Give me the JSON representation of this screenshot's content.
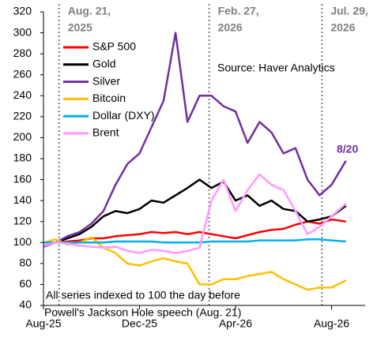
{
  "chart_data": {
    "type": "line",
    "x": [
      0,
      0.5,
      1,
      1.5,
      2,
      2.5,
      3,
      3.5,
      4,
      4.5,
      5,
      5.5,
      6,
      6.5,
      7,
      7.5,
      8,
      8.5,
      9,
      9.5,
      10,
      10.5,
      11,
      11.5,
      12,
      12.6
    ],
    "series": [
      {
        "name": "S&P 500",
        "color": "#ff0000",
        "values": [
          100,
          100,
          101,
          102,
          104,
          104,
          106,
          107,
          108,
          110,
          109,
          110,
          108,
          110,
          108,
          106,
          104,
          107,
          110,
          112,
          113,
          117,
          120,
          118,
          122,
          120
        ]
      },
      {
        "name": "Gold",
        "color": "#000000",
        "values": [
          97,
          100,
          104,
          108,
          115,
          125,
          130,
          128,
          132,
          140,
          138,
          145,
          152,
          160,
          152,
          158,
          140,
          145,
          135,
          140,
          132,
          130,
          120,
          122,
          125,
          135
        ]
      },
      {
        "name": "Silver",
        "color": "#7030a0",
        "values": [
          96,
          100,
          106,
          110,
          118,
          130,
          155,
          175,
          185,
          210,
          235,
          300,
          215,
          240,
          240,
          230,
          225,
          195,
          215,
          205,
          185,
          190,
          160,
          145,
          155,
          178
        ]
      },
      {
        "name": "Bitcoin",
        "color": "#ffc000",
        "values": [
          100,
          103,
          98,
          100,
          105,
          95,
          90,
          80,
          78,
          82,
          85,
          82,
          80,
          60,
          60,
          65,
          65,
          68,
          70,
          72,
          65,
          60,
          55,
          57,
          57,
          64
        ]
      },
      {
        "name": "Dollar (DXY)",
        "color": "#00b0f0",
        "values": [
          100,
          100,
          100,
          100,
          100,
          100,
          101,
          101,
          101,
          101,
          100,
          100,
          100,
          100,
          101,
          101,
          101,
          101,
          102,
          102,
          102,
          102,
          103,
          103,
          102,
          101
        ]
      },
      {
        "name": "Brent",
        "color": "#ff99ff",
        "values": [
          97,
          100,
          99,
          97,
          96,
          95,
          96,
          92,
          90,
          93,
          92,
          90,
          92,
          95,
          140,
          160,
          130,
          150,
          165,
          155,
          150,
          130,
          108,
          115,
          125,
          137
        ]
      }
    ],
    "xlim": [
      0,
      13.4
    ],
    "xticks": [
      {
        "value": 0,
        "label": "Aug-25"
      },
      {
        "value": 4,
        "label": "Dec-25"
      },
      {
        "value": 8,
        "label": "Apr-26"
      },
      {
        "value": 12,
        "label": "Aug-26"
      }
    ],
    "ylim": [
      40,
      320
    ],
    "yticks": [
      40,
      60,
      80,
      100,
      120,
      140,
      160,
      180,
      200,
      220,
      240,
      260,
      280,
      300,
      320
    ],
    "events": [
      {
        "x": 0.65,
        "label": [
          "Aug. 21,",
          "2025"
        ]
      },
      {
        "x": 6.9,
        "label": [
          "Feb. 27,",
          "2026"
        ]
      },
      {
        "x": 11.6,
        "label": [
          "Jul. 29,",
          "2026"
        ]
      }
    ],
    "source": "Source: Haver Analytics",
    "end_label": "8/20",
    "note": [
      "All series indexed to 100 the day before",
      "Powell's Jackson Hole speech (Aug. 21)"
    ]
  }
}
